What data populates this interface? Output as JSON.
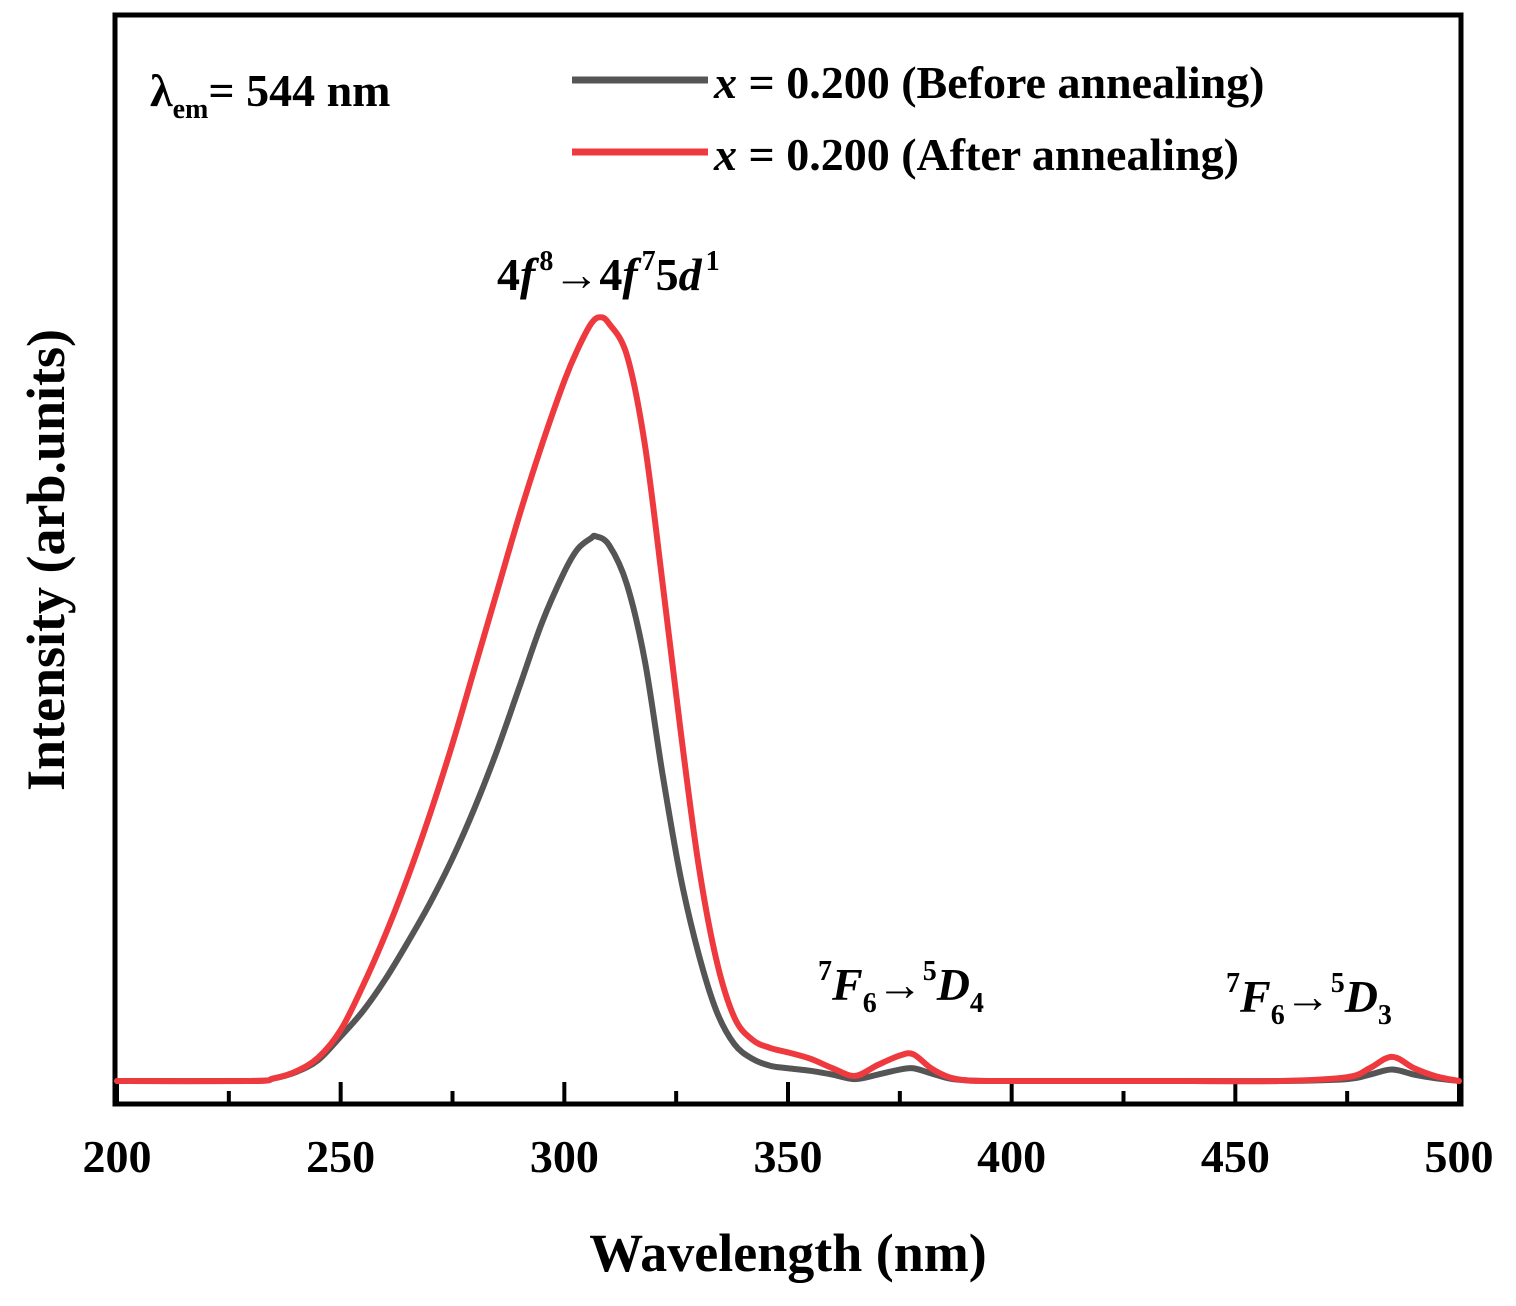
{
  "chart_data": {
    "type": "line",
    "title": "",
    "xlabel": "Wavelength (nm)",
    "ylabel": "Intensity (arb.units)",
    "xlim": [
      200,
      500
    ],
    "ylim": [
      0,
      1.18
    ],
    "xticks": [
      200,
      250,
      300,
      350,
      400,
      450,
      500
    ],
    "yticks_labeled": false,
    "grid": false,
    "legend_position": "top-right",
    "colors": {
      "before": "#555555",
      "after": "#ee3a3e"
    },
    "note": {
      "lambda": "λ",
      "sub": "em",
      "rest": "= 544 nm"
    },
    "legend": [
      {
        "var": "x",
        "text": " = 0.200 (Before annealing)"
      },
      {
        "var": "x",
        "text": " = 0.200 (After annealing)"
      }
    ],
    "annotations": {
      "peak1": {
        "p1": "4",
        "f1": "f",
        "s1": "8",
        "arrow": "→",
        "p2": "4",
        "f2": "f",
        "s2": "7",
        "p3": "5",
        "d": "d",
        "s3": "1"
      },
      "peak2": {
        "pre": "7",
        "F": "F",
        "sub": "6",
        "arrow": "→",
        "sup2": "5",
        "D": "D",
        "sub2": "4"
      },
      "peak3": {
        "pre": "7",
        "F": "F",
        "sub": "6",
        "arrow": "→",
        "sup2": "5",
        "D": "D",
        "sub2": "3"
      }
    },
    "series": [
      {
        "name": "x = 0.200 (Before annealing)",
        "color": "#555555",
        "x": [
          200,
          230,
          235,
          240,
          245,
          250,
          255,
          260,
          265,
          270,
          275,
          280,
          285,
          290,
          295,
          300,
          303,
          306,
          307,
          310,
          314,
          318,
          322,
          326,
          330,
          334,
          338,
          342,
          346,
          350,
          355,
          360,
          365,
          370,
          375,
          378,
          382,
          386,
          390,
          395,
          400,
          420,
          440,
          460,
          475,
          480,
          485,
          490,
          495,
          500
        ],
        "y": [
          0,
          0,
          0.004,
          0.014,
          0.033,
          0.07,
          0.11,
          0.16,
          0.218,
          0.28,
          0.35,
          0.43,
          0.52,
          0.62,
          0.72,
          0.8,
          0.836,
          0.853,
          0.856,
          0.842,
          0.78,
          0.66,
          0.48,
          0.32,
          0.2,
          0.11,
          0.058,
          0.035,
          0.024,
          0.02,
          0.016,
          0.01,
          0.003,
          0.01,
          0.018,
          0.02,
          0.012,
          0.004,
          0.001,
          0,
          0,
          0,
          0,
          0,
          0.003,
          0.01,
          0.018,
          0.01,
          0.004,
          0
        ]
      },
      {
        "name": "x = 0.200 (After annealing)",
        "color": "#ee3a3e",
        "x": [
          200,
          230,
          235,
          240,
          245,
          250,
          255,
          260,
          265,
          270,
          275,
          280,
          285,
          290,
          295,
          300,
          303,
          306,
          308,
          310,
          314,
          318,
          322,
          326,
          330,
          334,
          338,
          342,
          346,
          350,
          355,
          360,
          365,
          370,
          375,
          378,
          382,
          386,
          390,
          395,
          400,
          420,
          440,
          460,
          475,
          480,
          485,
          490,
          495,
          500
        ],
        "y": [
          0,
          0,
          0.004,
          0.015,
          0.037,
          0.08,
          0.15,
          0.23,
          0.32,
          0.42,
          0.53,
          0.65,
          0.77,
          0.89,
          1.0,
          1.1,
          1.15,
          1.19,
          1.2,
          1.19,
          1.14,
          1.0,
          0.78,
          0.55,
          0.34,
          0.19,
          0.1,
          0.065,
          0.052,
          0.045,
          0.035,
          0.02,
          0.008,
          0.025,
          0.04,
          0.042,
          0.02,
          0.006,
          0.001,
          0,
          0,
          0,
          0,
          0,
          0.006,
          0.02,
          0.038,
          0.02,
          0.007,
          0
        ]
      }
    ]
  }
}
